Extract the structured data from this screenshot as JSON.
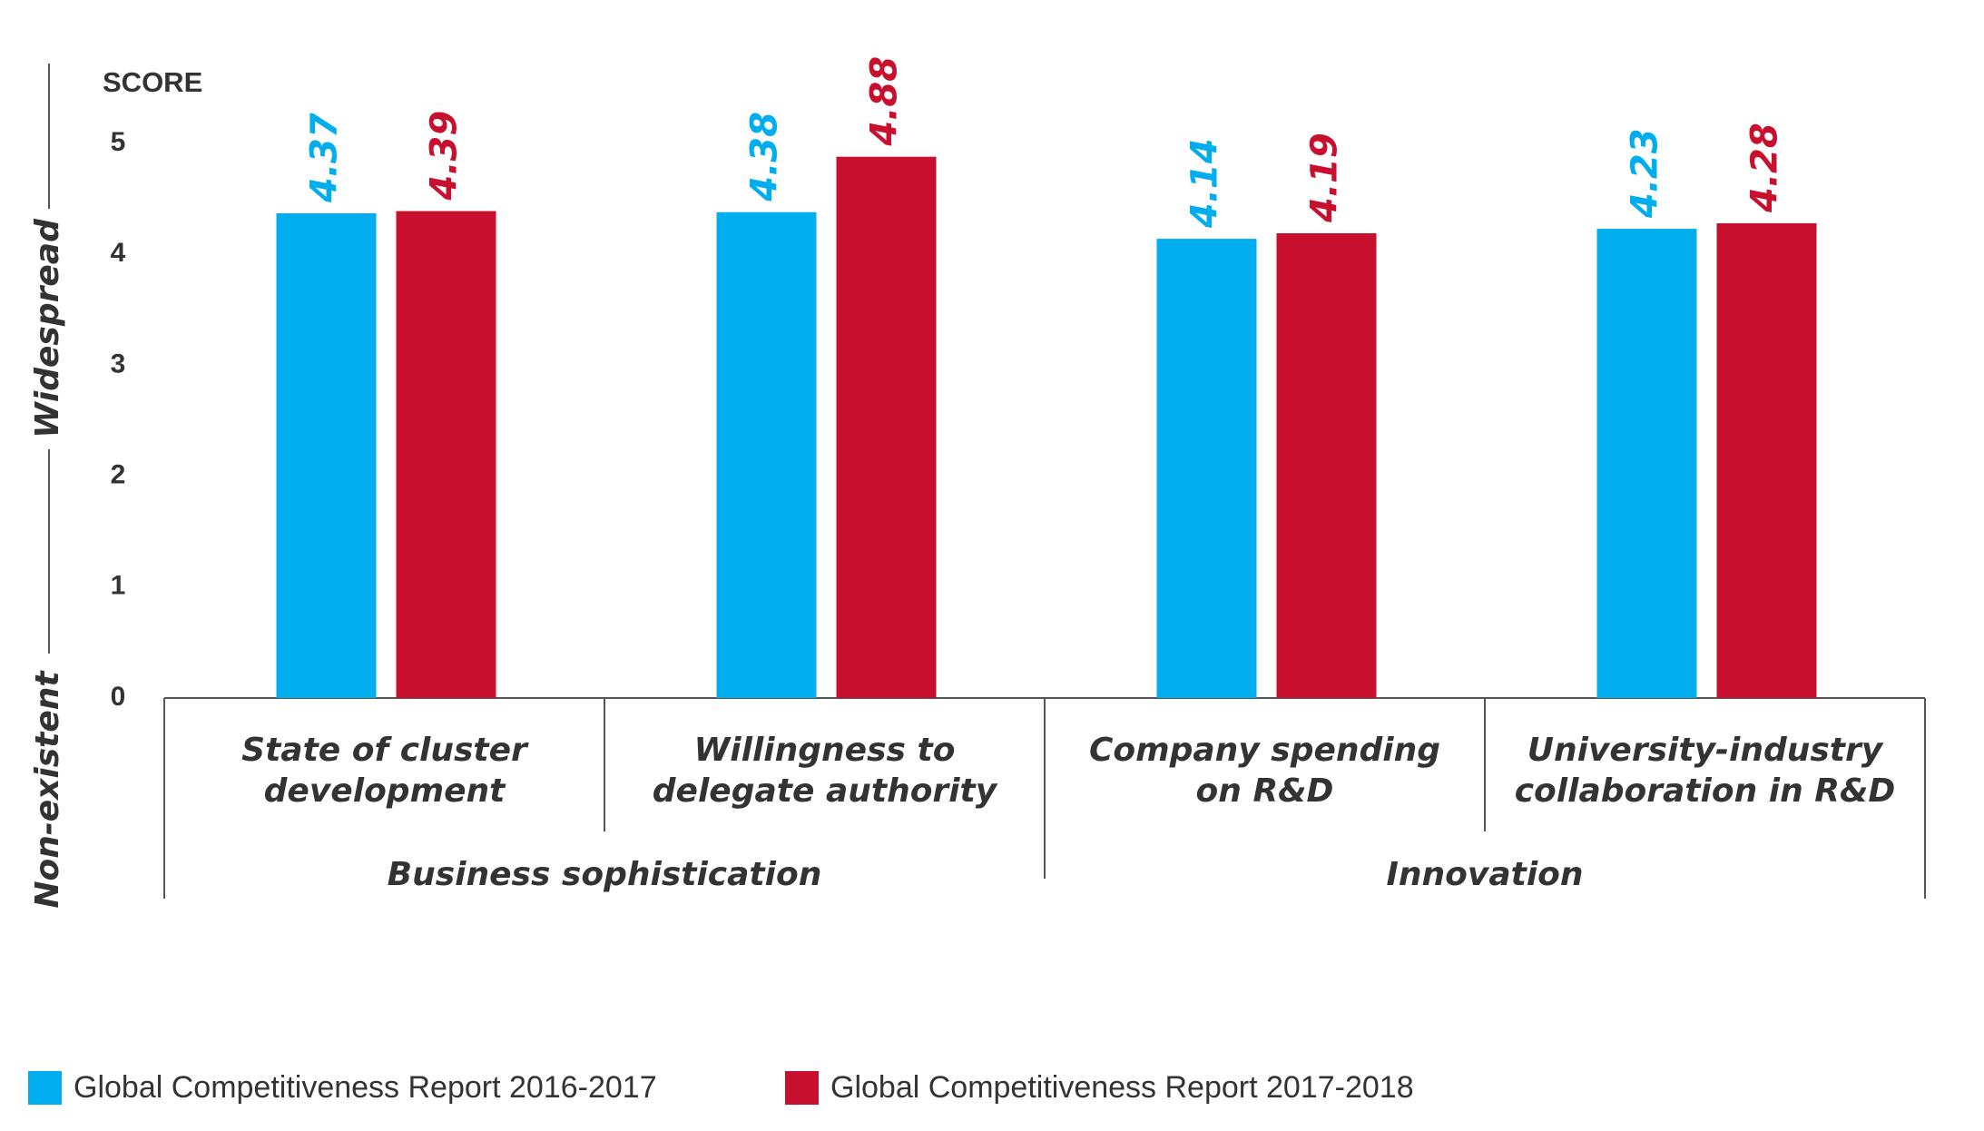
{
  "chart_data": {
    "type": "bar",
    "y_label": "SCORE",
    "axis_top_label": "Widespread",
    "axis_bottom_label": "Non-existent",
    "categories": [
      [
        "State of cluster",
        "development"
      ],
      [
        "Willingness to",
        "delegate authority"
      ],
      [
        "Company spending",
        "on R&D"
      ],
      [
        "University-industry",
        "collaboration in R&D"
      ]
    ],
    "groups": [
      "Business sophistication",
      "Innovation"
    ],
    "series": [
      {
        "name": "Global Competitiveness Report 2016-2017",
        "color": "#00aeef",
        "values": [
          4.37,
          4.38,
          4.14,
          4.23
        ]
      },
      {
        "name": "Global Competitiveness Report 2017-2018",
        "color": "#c8102e",
        "values": [
          4.39,
          4.88,
          4.19,
          4.28
        ]
      }
    ],
    "ylim": [
      0,
      5
    ],
    "yticks": [
      0,
      1,
      2,
      3,
      4,
      5
    ],
    "grid": false,
    "legend": "bottom"
  }
}
